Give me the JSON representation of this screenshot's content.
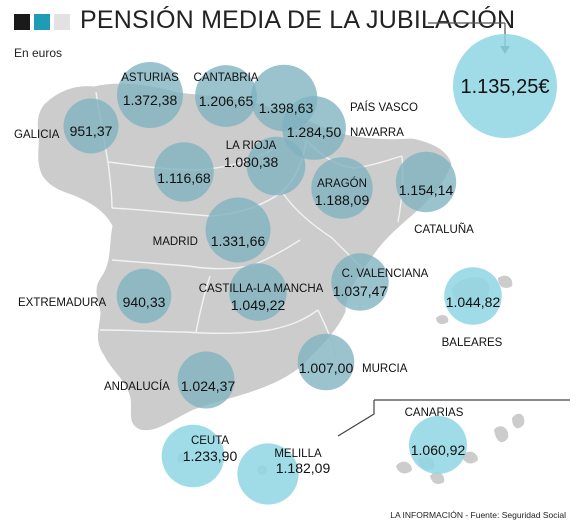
{
  "header": {
    "title": "PENSIÓN MEDIA DE LA JUBILACIÓN",
    "subtitle": "En euros",
    "swatches": [
      "#1a1a1a",
      "#1e9bb5",
      "#e2e2e2"
    ]
  },
  "source": "LA INFORMACIÓN - Fuente: Seguridad Social",
  "chart_data": {
    "type": "bubble-map",
    "title": "PENSIÓN MEDIA DE LA JUBILACIÓN",
    "unit": "En euros",
    "national": {
      "label": "1.135,25€",
      "value": 1135.25
    },
    "colors": {
      "bubble": "#8fd6e3",
      "bubble_on_map": "#7fb2c0",
      "map": "#cccccc",
      "border": "#f2f2f2"
    },
    "regions": [
      {
        "name": "ASTURIAS",
        "value": 1372.38,
        "label": "1.372,38"
      },
      {
        "name": "CANTABRIA",
        "value": 1206.65,
        "label": "1.206,65"
      },
      {
        "name": "",
        "value": 1398.63,
        "label": "1.398,63"
      },
      {
        "name": "PAÍS VASCO",
        "value": 1284.5,
        "label": "1.284,50"
      },
      {
        "name": "NAVARRA",
        "value": null,
        "label": ""
      },
      {
        "name": "GALICIA",
        "value": 951.37,
        "label": "951,37"
      },
      {
        "name": "LA RIOJA",
        "value": 1080.38,
        "label": "1.080,38"
      },
      {
        "name": "",
        "value": 1116.68,
        "label": "1.116,68"
      },
      {
        "name": "ARAGÓN",
        "value": 1188.09,
        "label": "1.188,09"
      },
      {
        "name": "CATALUÑA",
        "value": 1154.14,
        "label": "1.154,14"
      },
      {
        "name": "MADRID",
        "value": 1331.66,
        "label": "1.331,66"
      },
      {
        "name": "CASTILLA-LA MANCHA",
        "value": 1049.22,
        "label": "1.049,22"
      },
      {
        "name": "C. VALENCIANA",
        "value": 1037.47,
        "label": "1.037,47"
      },
      {
        "name": "EXTREMADURA",
        "value": 940.33,
        "label": "940,33"
      },
      {
        "name": "BALEARES",
        "value": 1044.82,
        "label": "1.044,82"
      },
      {
        "name": "MURCIA",
        "value": 1007.0,
        "label": "1.007,00"
      },
      {
        "name": "ANDALUCÍA",
        "value": 1024.37,
        "label": "1.024,37"
      },
      {
        "name": "CEUTA",
        "value": 1233.9,
        "label": "1.233,90"
      },
      {
        "name": "MELILLA",
        "value": 1182.09,
        "label": "1.182,09"
      },
      {
        "name": "CANARIAS",
        "value": 1060.92,
        "label": "1.060,92"
      }
    ]
  }
}
